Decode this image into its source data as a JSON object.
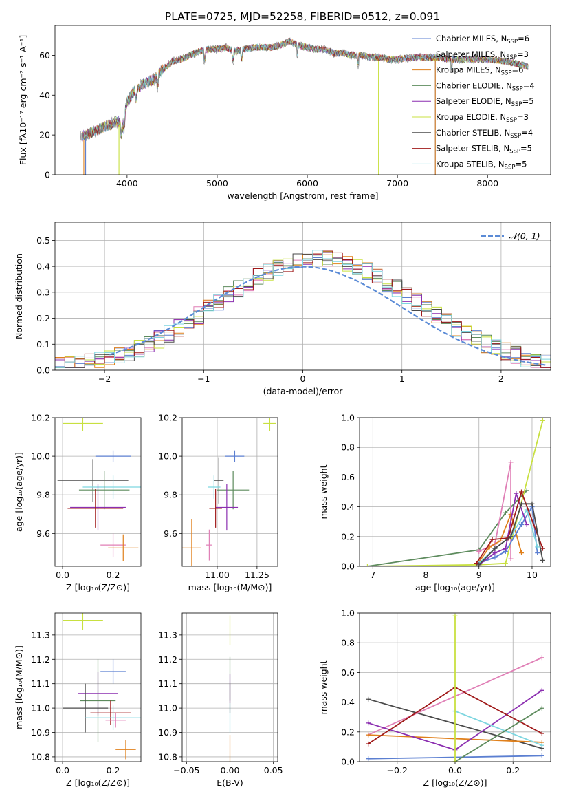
{
  "figure": {
    "title": "PLATE=0725, MJD=52258, FIBERID=0512, z=0.091"
  },
  "colors": {
    "Chabrier MILES": "#5b7fd1",
    "Salpeter MILES": "#e07fb6",
    "Kroupa MILES": "#e0801c",
    "Chabrier ELODIE": "#5d8b5d",
    "Salpeter ELODIE": "#8b2eb0",
    "Kroupa ELODIE": "#c8e040",
    "Chabrier STELIB": "#4a4a4a",
    "Salpeter STELIB": "#a01a1a",
    "Kroupa STELIB": "#7ed6e0"
  },
  "chart_data": [
    {
      "id": "spectrum",
      "type": "line",
      "xlabel": "wavelength [Angstrom, rest frame]",
      "ylabel": "Flux [fλ10⁻¹⁷ erg cm⁻² s⁻¹ A⁻¹]",
      "xlim": [
        3200,
        8700
      ],
      "ylim": [
        0,
        75
      ],
      "xticks": [
        4000,
        5000,
        6000,
        7000,
        8000
      ],
      "yticks": [
        0,
        20,
        40,
        60
      ],
      "grid": false,
      "legend_position": "top-right",
      "legend": [
        {
          "label": "Chabrier MILES, N",
          "sub": "SSP",
          "tail": "=6",
          "series": "Chabrier MILES"
        },
        {
          "label": "Salpeter MILES, N",
          "sub": "SSP",
          "tail": "=3",
          "series": "Salpeter MILES"
        },
        {
          "label": "Kroupa MILES, N",
          "sub": "SSP",
          "tail": "=6",
          "series": "Kroupa MILES"
        },
        {
          "label": "Chabrier ELODIE, N",
          "sub": "SSP",
          "tail": "=4",
          "series": "Chabrier ELODIE"
        },
        {
          "label": "Salpeter ELODIE, N",
          "sub": "SSP",
          "tail": "=5",
          "series": "Salpeter ELODIE"
        },
        {
          "label": "Kroupa ELODIE, N",
          "sub": "SSP",
          "tail": "=3",
          "series": "Kroupa ELODIE"
        },
        {
          "label": "Chabrier STELIB, N",
          "sub": "SSP",
          "tail": "=4",
          "series": "Chabrier STELIB"
        },
        {
          "label": "Salpeter STELIB, N",
          "sub": "SSP",
          "tail": "=5",
          "series": "Salpeter STELIB"
        },
        {
          "label": "Kroupa STELIB, N",
          "sub": "SSP",
          "tail": "=5",
          "series": "Kroupa STELIB"
        }
      ],
      "continuum": [
        [
          3480,
          19
        ],
        [
          3600,
          21
        ],
        [
          3700,
          23
        ],
        [
          3800,
          25
        ],
        [
          3900,
          27
        ],
        [
          3950,
          24
        ],
        [
          4000,
          37
        ],
        [
          4100,
          43
        ],
        [
          4200,
          46
        ],
        [
          4300,
          48
        ],
        [
          4400,
          53
        ],
        [
          4500,
          57
        ],
        [
          4600,
          58
        ],
        [
          4700,
          60
        ],
        [
          4800,
          62
        ],
        [
          4900,
          63
        ],
        [
          5000,
          63
        ],
        [
          5100,
          64
        ],
        [
          5200,
          62
        ],
        [
          5300,
          63
        ],
        [
          5400,
          64
        ],
        [
          5500,
          64
        ],
        [
          5600,
          64
        ],
        [
          5700,
          65
        ],
        [
          5800,
          67
        ],
        [
          5900,
          65
        ],
        [
          6000,
          64
        ],
        [
          6100,
          63
        ],
        [
          6200,
          63
        ],
        [
          6300,
          61
        ],
        [
          6400,
          61
        ],
        [
          6500,
          60
        ],
        [
          6600,
          60
        ],
        [
          6700,
          59
        ],
        [
          6800,
          59
        ],
        [
          6900,
          58
        ],
        [
          7000,
          58
        ],
        [
          7200,
          59
        ],
        [
          7400,
          59
        ],
        [
          7600,
          58
        ],
        [
          7800,
          58
        ],
        [
          8000,
          58
        ],
        [
          8200,
          57
        ],
        [
          8400,
          55
        ],
        [
          8450,
          54
        ]
      ],
      "model_edges": {
        "Kroupa MILES": [
          3520,
          7420
        ],
        "Kroupa ELODIE": [
          3910,
          6790
        ],
        "Chabrier MILES": [
          3540,
          7420
        ]
      }
    },
    {
      "id": "residuals",
      "type": "step",
      "xlabel": "(data-model)/error",
      "ylabel": "Normed distribution",
      "xlim": [
        -2.5,
        2.5
      ],
      "ylim": [
        0,
        0.57
      ],
      "xticks": [
        -2,
        -1,
        0,
        1,
        2
      ],
      "xticklabels": [
        "−2",
        "−1",
        "0",
        "1",
        "2"
      ],
      "yticks": [
        0.0,
        0.1,
        0.2,
        0.3,
        0.4,
        0.5
      ],
      "yticklabels": [
        "0.0",
        "0.1",
        "0.2",
        "0.3",
        "0.4",
        "0.5"
      ],
      "grid": true,
      "legend_position": "top-right",
      "legend": [
        {
          "label": "𝒩(0, 1)",
          "style": "dashed"
        }
      ],
      "bin_width": 0.1
    },
    {
      "id": "age_vs_Z",
      "type": "errorbar",
      "xlabel": "Z [log₁₀(Z/Z⊙)]",
      "ylabel": "age  [log₁₀(age/yr)]",
      "xlim": [
        -0.03,
        0.31
      ],
      "ylim": [
        9.43,
        10.2
      ],
      "xticks": [
        0.0,
        0.2
      ],
      "xticklabels": [
        "0.0",
        "0.2"
      ],
      "yticks": [
        9.6,
        9.8,
        10.0,
        10.2
      ],
      "yticklabels": [
        "9.6",
        "9.8",
        "10.0",
        "10.2"
      ],
      "grid": true,
      "points": [
        {
          "series": "Kroupa ELODIE",
          "x": 0.08,
          "xerr": 0.08,
          "y": 10.17,
          "yerr": 0.04
        },
        {
          "series": "Chabrier MILES",
          "x": 0.2,
          "xerr": 0.07,
          "y": 10.0,
          "yerr": 0.03
        },
        {
          "series": "Chabrier STELIB",
          "x": 0.12,
          "xerr": 0.14,
          "y": 9.875,
          "yerr": 0.11
        },
        {
          "series": "Kroupa STELIB",
          "x": 0.2,
          "xerr": 0.12,
          "y": 9.84,
          "yerr": 0.06
        },
        {
          "series": "Chabrier ELODIE",
          "x": 0.165,
          "xerr": 0.1,
          "y": 9.825,
          "yerr": 0.1
        },
        {
          "series": "Salpeter ELODIE",
          "x": 0.14,
          "xerr": 0.11,
          "y": 9.735,
          "yerr": 0.12
        },
        {
          "series": "Salpeter STELIB",
          "x": 0.13,
          "xerr": 0.11,
          "y": 9.73,
          "yerr": 0.1
        },
        {
          "series": "Salpeter MILES",
          "x": 0.2,
          "xerr": 0.05,
          "y": 9.54,
          "yerr": 0.06
        },
        {
          "series": "Kroupa MILES",
          "x": 0.24,
          "xerr": 0.06,
          "y": 9.525,
          "yerr": 0.07
        }
      ]
    },
    {
      "id": "age_vs_mass",
      "type": "errorbar",
      "xlabel": "mass [log₁₀(M/M⊙)]",
      "ylabel": "",
      "xlim": [
        10.78,
        11.38
      ],
      "ylim": [
        9.43,
        10.2
      ],
      "xticks": [
        11.0,
        11.25
      ],
      "xticklabels": [
        "11.00",
        "11.25"
      ],
      "yticks": [
        9.6,
        9.8,
        10.0,
        10.2
      ],
      "yticklabels": [
        "9.6",
        "9.8",
        "10.0",
        "10.2"
      ],
      "grid": true,
      "points": [
        {
          "series": "Kroupa ELODIE",
          "x": 11.33,
          "xerr": 0.04,
          "y": 10.17,
          "yerr": 0.04
        },
        {
          "series": "Chabrier MILES",
          "x": 11.11,
          "xerr": 0.06,
          "y": 10.0,
          "yerr": 0.03
        },
        {
          "series": "Chabrier STELIB",
          "x": 11.01,
          "xerr": 0.03,
          "y": 9.875,
          "yerr": 0.12
        },
        {
          "series": "Kroupa STELIB",
          "x": 10.98,
          "xerr": 0.04,
          "y": 9.84,
          "yerr": 0.06
        },
        {
          "series": "Chabrier ELODIE",
          "x": 11.1,
          "xerr": 0.1,
          "y": 9.825,
          "yerr": 0.1
        },
        {
          "series": "Salpeter ELODIE",
          "x": 11.06,
          "xerr": 0.07,
          "y": 9.735,
          "yerr": 0.12
        },
        {
          "series": "Salpeter STELIB",
          "x": 10.99,
          "xerr": 0.04,
          "y": 9.73,
          "yerr": 0.1
        },
        {
          "series": "Salpeter MILES",
          "x": 10.95,
          "xerr": 0.02,
          "y": 9.54,
          "yerr": 0.08
        },
        {
          "series": "Kroupa MILES",
          "x": 10.84,
          "xerr": 0.06,
          "y": 9.525,
          "yerr": 0.15
        }
      ]
    },
    {
      "id": "weight_vs_age",
      "type": "line",
      "xlabel": "age  [log₁₀(age/yr)]",
      "ylabel": "mass weight",
      "xlim": [
        6.75,
        10.35
      ],
      "ylim": [
        0,
        1
      ],
      "xticks": [
        7,
        8,
        9,
        10
      ],
      "yticks": [
        0.0,
        0.2,
        0.4,
        0.6,
        0.8,
        1.0
      ],
      "yticklabels": [
        "0.0",
        "0.2",
        "0.4",
        "0.6",
        "0.8",
        "1.0"
      ],
      "grid": true,
      "series": [
        {
          "name": "Chabrier ELODIE",
          "x": [
            6.9,
            9.0,
            9.5,
            9.9
          ],
          "y": [
            0.0,
            0.11,
            0.36,
            0.51
          ]
        },
        {
          "name": "Kroupa ELODIE",
          "x": [
            6.9,
            9.0,
            9.5,
            10.2
          ],
          "y": [
            0.0,
            0.01,
            0.02,
            0.98
          ]
        },
        {
          "name": "Salpeter MILES",
          "x": [
            9.0,
            9.3,
            9.6,
            9.6
          ],
          "y": [
            0.1,
            0.15,
            0.7,
            0.05
          ]
        },
        {
          "name": "Kroupa MILES",
          "x": [
            9.0,
            9.2,
            9.4,
            9.6,
            9.8
          ],
          "y": [
            0.03,
            0.13,
            0.17,
            0.35,
            0.09
          ]
        },
        {
          "name": "Chabrier MILES",
          "x": [
            9.0,
            9.3,
            9.5,
            9.8,
            10.0,
            10.1
          ],
          "y": [
            0.02,
            0.06,
            0.1,
            0.28,
            0.4,
            0.09
          ]
        },
        {
          "name": "Kroupa STELIB",
          "x": [
            9.0,
            9.3,
            9.6,
            9.9,
            10.1
          ],
          "y": [
            0.02,
            0.12,
            0.2,
            0.38,
            0.13
          ]
        },
        {
          "name": "Salpeter ELODIE",
          "x": [
            9.0,
            9.3,
            9.5,
            9.7,
            9.9
          ],
          "y": [
            0.01,
            0.09,
            0.12,
            0.49,
            0.28
          ]
        },
        {
          "name": "Salpeter STELIB",
          "x": [
            8.95,
            9.25,
            9.55,
            9.8,
            10.2
          ],
          "y": [
            0.02,
            0.18,
            0.19,
            0.5,
            0.12
          ]
        },
        {
          "name": "Chabrier STELIB",
          "x": [
            9.0,
            9.3,
            9.6,
            9.8,
            10.0,
            10.2
          ],
          "y": [
            0.01,
            0.12,
            0.2,
            0.42,
            0.42,
            0.04
          ]
        }
      ]
    },
    {
      "id": "mass_vs_Z",
      "type": "errorbar",
      "xlabel": "Z [log₁₀(Z/Z⊙)]",
      "ylabel": "mass [log₁₀(M/M⊙)]",
      "xlim": [
        -0.03,
        0.31
      ],
      "ylim": [
        10.78,
        11.39
      ],
      "xticks": [
        0.0,
        0.2
      ],
      "xticklabels": [
        "0.0",
        "0.2"
      ],
      "yticks": [
        10.8,
        10.9,
        11.0,
        11.1,
        11.2,
        11.3
      ],
      "yticklabels": [
        "10.8",
        "10.9",
        "11.0",
        "11.1",
        "11.2",
        "11.3"
      ],
      "grid": true,
      "points": [
        {
          "series": "Kroupa ELODIE",
          "x": 0.08,
          "xerr": 0.08,
          "y": 11.36,
          "yerr": 0.04
        },
        {
          "series": "Chabrier MILES",
          "x": 0.2,
          "xerr": 0.05,
          "y": 11.15,
          "yerr": 0.05
        },
        {
          "series": "Salpeter ELODIE",
          "x": 0.14,
          "xerr": 0.08,
          "y": 11.06,
          "yerr": 0.09
        },
        {
          "series": "Chabrier ELODIE",
          "x": 0.14,
          "xerr": 0.07,
          "y": 11.03,
          "yerr": 0.17
        },
        {
          "series": "Chabrier STELIB",
          "x": 0.09,
          "xerr": 0.09,
          "y": 11.0,
          "yerr": 0.1
        },
        {
          "series": "Salpeter STELIB",
          "x": 0.19,
          "xerr": 0.08,
          "y": 10.98,
          "yerr": 0.05
        },
        {
          "series": "Kroupa STELIB",
          "x": 0.2,
          "xerr": 0.11,
          "y": 10.96,
          "yerr": 0.05
        },
        {
          "series": "Salpeter MILES",
          "x": 0.21,
          "xerr": 0.04,
          "y": 10.95,
          "yerr": 0.03
        },
        {
          "series": "Kroupa MILES",
          "x": 0.25,
          "xerr": 0.04,
          "y": 10.83,
          "yerr": 0.04
        }
      ]
    },
    {
      "id": "mass_vs_ebv",
      "type": "errorbar",
      "xlabel": "E(B-V)",
      "ylabel": "",
      "xlim": [
        -0.055,
        0.055
      ],
      "ylim": [
        10.78,
        11.39
      ],
      "xticks": [
        -0.05,
        0.0,
        0.05
      ],
      "xticklabels": [
        "−0.05",
        "0.00",
        "0.05"
      ],
      "yticks": [
        10.8,
        10.9,
        11.0,
        11.1,
        11.2,
        11.3
      ],
      "yticklabels": [
        "10.8",
        "10.9",
        "11.0",
        "11.1",
        "11.2",
        "11.3"
      ],
      "grid": true,
      "points": [
        {
          "series": "Kroupa ELODIE",
          "x": 0.0,
          "xerr": 0.0,
          "y": 11.32,
          "yerr": 0.06
        },
        {
          "series": "Chabrier ELODIE",
          "x": 0.0,
          "xerr": 0.0,
          "y": 11.12,
          "yerr": 0.09
        },
        {
          "series": "Salpeter ELODIE",
          "x": 0.0,
          "xerr": 0.0,
          "y": 11.08,
          "yerr": 0.06
        },
        {
          "series": "Chabrier STELIB",
          "x": 0.0,
          "xerr": 0.0,
          "y": 11.04,
          "yerr": 0.06
        },
        {
          "series": "Kroupa STELIB",
          "x": 0.0,
          "xerr": 0.0,
          "y": 10.96,
          "yerr": 0.06
        },
        {
          "series": "Kroupa MILES",
          "x": 0.0,
          "xerr": 0.0,
          "y": 10.83,
          "yerr": 0.06
        }
      ]
    },
    {
      "id": "weight_vs_Z",
      "type": "line",
      "xlabel": "Z [log₁₀(Z/Z⊙)]",
      "ylabel": "mass weight",
      "xlim": [
        -0.33,
        0.33
      ],
      "ylim": [
        0,
        1
      ],
      "xticks": [
        -0.2,
        0.0,
        0.2
      ],
      "xticklabels": [
        "−0.2",
        "0.0",
        "0.2"
      ],
      "yticks": [
        0.0,
        0.2,
        0.4,
        0.6,
        0.8,
        1.0
      ],
      "yticklabels": [
        "0.0",
        "0.2",
        "0.4",
        "0.6",
        "0.8",
        "1.0"
      ],
      "grid": true,
      "series": [
        {
          "name": "Chabrier STELIB",
          "x": [
            -0.3,
            0.3
          ],
          "y": [
            0.42,
            0.09
          ]
        },
        {
          "name": "Salpeter MILES",
          "x": [
            -0.3,
            0.3
          ],
          "y": [
            0.18,
            0.7
          ]
        },
        {
          "name": "Kroupa MILES",
          "x": [
            -0.3,
            0.3
          ],
          "y": [
            0.18,
            0.13
          ]
        },
        {
          "name": "Chabrier MILES",
          "x": [
            -0.3,
            0.3
          ],
          "y": [
            0.02,
            0.04
          ]
        },
        {
          "name": "Salpeter ELODIE",
          "x": [
            -0.3,
            0.0,
            0.3
          ],
          "y": [
            0.26,
            0.08,
            0.48
          ]
        },
        {
          "name": "Salpeter STELIB",
          "x": [
            -0.3,
            0.0,
            0.3
          ],
          "y": [
            0.12,
            0.5,
            0.19
          ]
        },
        {
          "name": "Kroupa STELIB",
          "x": [
            0.0,
            0.3
          ],
          "y": [
            0.34,
            0.11
          ]
        },
        {
          "name": "Chabrier ELODIE",
          "x": [
            0.0,
            0.3
          ],
          "y": [
            0.0,
            0.36
          ]
        },
        {
          "name": "Kroupa ELODIE",
          "x": [
            0.0,
            0.0
          ],
          "y": [
            0.0,
            0.98
          ]
        }
      ]
    }
  ]
}
